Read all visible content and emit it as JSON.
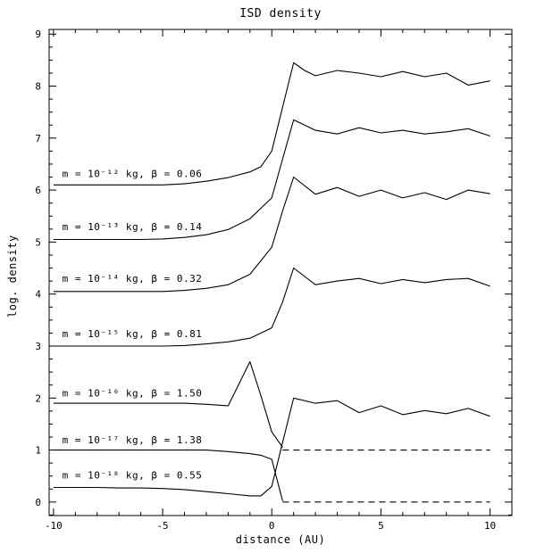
{
  "chart_data": {
    "type": "line",
    "title": "ISD density",
    "xlabel": "distance (AU)",
    "ylabel": "log. density",
    "xlim": [
      -10.2,
      11.0
    ],
    "ylim": [
      -0.26,
      9.09
    ],
    "grid": false,
    "legend_position": "inline-labels",
    "xticks": [
      -10,
      -5,
      0,
      5,
      10
    ],
    "yticks": [
      0,
      1,
      2,
      3,
      4,
      5,
      6,
      7,
      8,
      9
    ],
    "x_minor_step": 1,
    "y_minor_step": 0.25,
    "line_color": "#000000",
    "series": [
      {
        "name": "m=1e-12kg",
        "label": "m = 10⁻¹² kg, β = 0.06",
        "beta": 0.06,
        "label_pos": [
          -9.6,
          6.32
        ],
        "points": [
          [
            -10,
            6.1
          ],
          [
            -9,
            6.1
          ],
          [
            -8,
            6.1
          ],
          [
            -7,
            6.1
          ],
          [
            -6,
            6.1
          ],
          [
            -5,
            6.1
          ],
          [
            -4,
            6.12
          ],
          [
            -3,
            6.17
          ],
          [
            -2,
            6.24
          ],
          [
            -1,
            6.35
          ],
          [
            -0.5,
            6.45
          ],
          [
            0,
            6.75
          ],
          [
            0.5,
            7.6
          ],
          [
            1,
            8.45
          ],
          [
            1.5,
            8.3
          ],
          [
            2,
            8.2
          ],
          [
            3,
            8.3
          ],
          [
            4,
            8.25
          ],
          [
            5,
            8.18
          ],
          [
            6,
            8.28
          ],
          [
            7,
            8.18
          ],
          [
            8,
            8.25
          ],
          [
            9,
            8.02
          ],
          [
            10,
            8.1
          ]
        ]
      },
      {
        "name": "m=1e-13kg",
        "label": "m = 10⁻¹³ kg, β = 0.14",
        "beta": 0.14,
        "label_pos": [
          -9.6,
          5.3
        ],
        "points": [
          [
            -10,
            5.05
          ],
          [
            -9,
            5.05
          ],
          [
            -8,
            5.05
          ],
          [
            -7,
            5.05
          ],
          [
            -6,
            5.05
          ],
          [
            -5,
            5.06
          ],
          [
            -4,
            5.09
          ],
          [
            -3,
            5.14
          ],
          [
            -2,
            5.24
          ],
          [
            -1,
            5.45
          ],
          [
            0,
            5.85
          ],
          [
            0.5,
            6.6
          ],
          [
            1,
            7.35
          ],
          [
            2,
            7.15
          ],
          [
            3,
            7.08
          ],
          [
            4,
            7.2
          ],
          [
            5,
            7.1
          ],
          [
            6,
            7.15
          ],
          [
            7,
            7.08
          ],
          [
            8,
            7.12
          ],
          [
            9,
            7.18
          ],
          [
            10,
            7.04
          ]
        ]
      },
      {
        "name": "m=1e-14kg",
        "label": "m = 10⁻¹⁴ kg, β = 0.32",
        "beta": 0.32,
        "label_pos": [
          -9.6,
          4.3
        ],
        "points": [
          [
            -10,
            4.05
          ],
          [
            -9,
            4.05
          ],
          [
            -8,
            4.05
          ],
          [
            -7,
            4.05
          ],
          [
            -6,
            4.05
          ],
          [
            -5,
            4.05
          ],
          [
            -4,
            4.07
          ],
          [
            -3,
            4.11
          ],
          [
            -2,
            4.18
          ],
          [
            -1,
            4.38
          ],
          [
            0,
            4.9
          ],
          [
            0.5,
            5.6
          ],
          [
            1,
            6.25
          ],
          [
            2,
            5.92
          ],
          [
            3,
            6.05
          ],
          [
            4,
            5.88
          ],
          [
            5,
            6.0
          ],
          [
            6,
            5.85
          ],
          [
            7,
            5.95
          ],
          [
            8,
            5.82
          ],
          [
            9,
            6.0
          ],
          [
            10,
            5.93
          ]
        ]
      },
      {
        "name": "m=1e-15kg",
        "label": "m = 10⁻¹⁵ kg, β = 0.81",
        "beta": 0.81,
        "label_pos": [
          -9.6,
          3.24
        ],
        "points": [
          [
            -10,
            3.0
          ],
          [
            -9,
            3.0
          ],
          [
            -8,
            3.0
          ],
          [
            -7,
            3.0
          ],
          [
            -6,
            3.0
          ],
          [
            -5,
            3.0
          ],
          [
            -4,
            3.01
          ],
          [
            -3,
            3.04
          ],
          [
            -2,
            3.08
          ],
          [
            -1,
            3.15
          ],
          [
            0,
            3.35
          ],
          [
            0.5,
            3.85
          ],
          [
            1,
            4.5
          ],
          [
            2,
            4.18
          ],
          [
            3,
            4.25
          ],
          [
            4,
            4.3
          ],
          [
            5,
            4.2
          ],
          [
            6,
            4.28
          ],
          [
            7,
            4.22
          ],
          [
            8,
            4.28
          ],
          [
            9,
            4.3
          ],
          [
            10,
            4.15
          ]
        ]
      },
      {
        "name": "m=1e-16kg",
        "label": "m = 10⁻¹⁶ kg, β = 1.50",
        "beta": 1.5,
        "label_pos": [
          -9.6,
          2.1
        ],
        "points": [
          [
            -10,
            1.9
          ],
          [
            -9,
            1.9
          ],
          [
            -8,
            1.9
          ],
          [
            -7,
            1.9
          ],
          [
            -6,
            1.9
          ],
          [
            -5,
            1.9
          ],
          [
            -4,
            1.9
          ],
          [
            -3,
            1.88
          ],
          [
            -2,
            1.85
          ],
          [
            -1,
            2.7
          ],
          [
            -0.5,
            2.05
          ],
          [
            0,
            1.35
          ],
          [
            0.5,
            1.05
          ]
        ],
        "points_dashed": [
          [
            0.5,
            1.0
          ],
          [
            10,
            1.0
          ]
        ]
      },
      {
        "name": "m=1e-17kg",
        "label": "m = 10⁻¹⁷ kg, β = 1.38",
        "beta": 1.38,
        "label_pos": [
          -9.6,
          1.2
        ],
        "points": [
          [
            -10,
            1.0
          ],
          [
            -9,
            1.0
          ],
          [
            -8,
            1.0
          ],
          [
            -7,
            1.0
          ],
          [
            -6,
            1.0
          ],
          [
            -5,
            1.0
          ],
          [
            -4,
            1.0
          ],
          [
            -3,
            1.0
          ],
          [
            -2,
            0.97
          ],
          [
            -1,
            0.93
          ],
          [
            -0.5,
            0.9
          ],
          [
            0,
            0.82
          ],
          [
            0.5,
            0.02
          ]
        ],
        "points_dashed": [
          [
            0.5,
            0.0
          ],
          [
            10,
            0.0
          ]
        ]
      },
      {
        "name": "m=1e-18kg",
        "label": "m = 10⁻¹⁸ kg, β = 0.55",
        "beta": 0.55,
        "label_pos": [
          -9.6,
          0.52
        ],
        "points": [
          [
            -10,
            0.28
          ],
          [
            -9,
            0.28
          ],
          [
            -8,
            0.28
          ],
          [
            -7,
            0.27
          ],
          [
            -6,
            0.27
          ],
          [
            -5,
            0.26
          ],
          [
            -4,
            0.24
          ],
          [
            -3,
            0.2
          ],
          [
            -2,
            0.16
          ],
          [
            -1,
            0.12
          ],
          [
            -0.5,
            0.12
          ],
          [
            0,
            0.3
          ],
          [
            0.5,
            1.15
          ],
          [
            1,
            2.0
          ],
          [
            2,
            1.9
          ],
          [
            3,
            1.95
          ],
          [
            4,
            1.72
          ],
          [
            5,
            1.85
          ],
          [
            6,
            1.68
          ],
          [
            7,
            1.76
          ],
          [
            8,
            1.7
          ],
          [
            9,
            1.8
          ],
          [
            10,
            1.65
          ]
        ]
      }
    ]
  }
}
